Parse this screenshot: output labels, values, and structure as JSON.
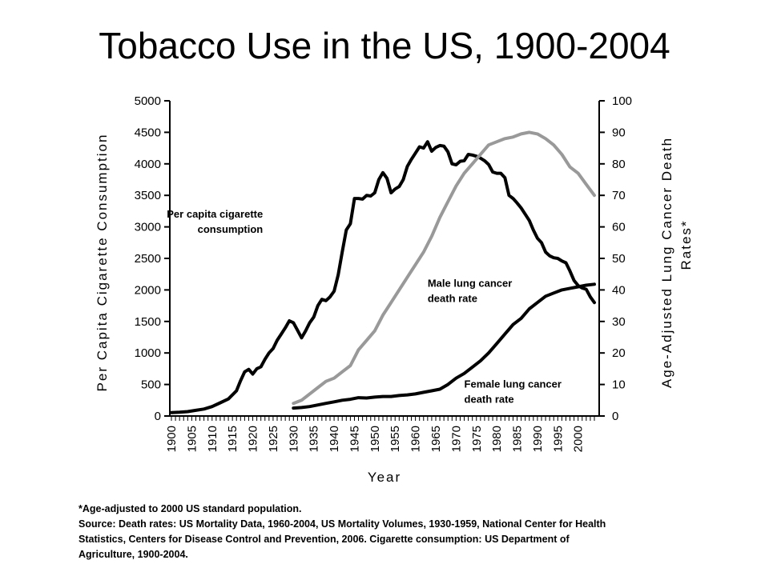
{
  "title": "Tobacco Use in the US, 1900-2004",
  "footnote": {
    "asterisk": "*Age-adjusted to 2000 US standard population.",
    "source_lines": [
      "Source: Death rates: US Mortality Data, 1960-2004, US Mortality Volumes, 1930-1959, National Center for Health",
      "Statistics, Centers for Disease Control and Prevention, 2006. Cigarette consumption: US Department of",
      "Agriculture, 1900-2004."
    ]
  },
  "chart_data": {
    "type": "line",
    "xlabel": "Year",
    "ylabel": "Per Capita Cigarette Consumption",
    "y2label_lines": [
      "Age-Adjusted Lung Cancer Death",
      "Rates*"
    ],
    "xlim": [
      1900,
      2004
    ],
    "ylim": [
      0,
      5000
    ],
    "y2lim": [
      0,
      100
    ],
    "x_ticks": [
      1900,
      1905,
      1910,
      1915,
      1920,
      1925,
      1930,
      1935,
      1940,
      1945,
      1950,
      1955,
      1960,
      1965,
      1970,
      1975,
      1980,
      1985,
      1990,
      1995,
      2000
    ],
    "y_ticks": [
      0,
      500,
      1000,
      1500,
      2000,
      2500,
      3000,
      3500,
      4000,
      4500,
      5000
    ],
    "y2_ticks": [
      0,
      10,
      20,
      30,
      40,
      50,
      60,
      70,
      80,
      90,
      100
    ],
    "grid": false,
    "legend": "none",
    "series": [
      {
        "axis": "left",
        "color": "#000000",
        "x": [
          1900,
          1902,
          1904,
          1906,
          1908,
          1910,
          1912,
          1914,
          1916,
          1917,
          1918,
          1919,
          1920,
          1921,
          1922,
          1923,
          1924,
          1925,
          1926,
          1927,
          1928,
          1929,
          1930,
          1931,
          1932,
          1933,
          1934,
          1935,
          1936,
          1937,
          1938,
          1939,
          1940,
          1941,
          1942,
          1943,
          1944,
          1945,
          1946,
          1947,
          1948,
          1949,
          1950,
          1951,
          1952,
          1953,
          1954,
          1955,
          1956,
          1957,
          1958,
          1959,
          1960,
          1961,
          1962,
          1963,
          1964,
          1965,
          1966,
          1967,
          1968,
          1969,
          1970,
          1971,
          1972,
          1973,
          1974,
          1975,
          1976,
          1977,
          1978,
          1979,
          1980,
          1981,
          1982,
          1983,
          1984,
          1985,
          1986,
          1987,
          1988,
          1989,
          1990,
          1991,
          1992,
          1993,
          1994,
          1995,
          1996,
          1997,
          1998,
          1999,
          2000,
          2001,
          2002,
          2003,
          2004
        ],
        "values": [
          54,
          60,
          70,
          90,
          110,
          150,
          210,
          270,
          400,
          560,
          700,
          740,
          665,
          750,
          780,
          900,
          1000,
          1070,
          1200,
          1300,
          1400,
          1510,
          1480,
          1360,
          1240,
          1350,
          1480,
          1570,
          1750,
          1850,
          1830,
          1890,
          1980,
          2240,
          2600,
          2950,
          3050,
          3450,
          3450,
          3440,
          3500,
          3490,
          3540,
          3750,
          3860,
          3770,
          3540,
          3600,
          3640,
          3750,
          3960,
          4070,
          4170,
          4270,
          4250,
          4350,
          4200,
          4260,
          4290,
          4280,
          4190,
          4000,
          3985,
          4040,
          4050,
          4150,
          4140,
          4120,
          4090,
          4050,
          3990,
          3870,
          3850,
          3850,
          3780,
          3500,
          3450,
          3380,
          3300,
          3200,
          3100,
          2950,
          2820,
          2750,
          2600,
          2540,
          2510,
          2500,
          2460,
          2430,
          2300,
          2150,
          2070,
          2030,
          2010,
          1890,
          1800
        ]
      },
      {
        "axis": "right",
        "color": "#999999",
        "x": [
          1930,
          1932,
          1934,
          1936,
          1938,
          1940,
          1942,
          1944,
          1946,
          1948,
          1950,
          1952,
          1954,
          1956,
          1958,
          1960,
          1962,
          1964,
          1966,
          1968,
          1970,
          1972,
          1974,
          1976,
          1978,
          1980,
          1982,
          1984,
          1986,
          1988,
          1990,
          1992,
          1994,
          1996,
          1998,
          2000,
          2002,
          2004
        ],
        "values": [
          4,
          5,
          7,
          9,
          11,
          12,
          14,
          16,
          21,
          24,
          27,
          32,
          36,
          40,
          44,
          48,
          52,
          57,
          63,
          68,
          73,
          77,
          80,
          83,
          86,
          87,
          88,
          88.5,
          89.5,
          90,
          89.5,
          88,
          86,
          83,
          79,
          77,
          73.5,
          70
        ]
      },
      {
        "axis": "right",
        "color": "#000000",
        "x": [
          1930,
          1932,
          1934,
          1936,
          1938,
          1940,
          1942,
          1944,
          1946,
          1948,
          1950,
          1952,
          1954,
          1956,
          1958,
          1960,
          1962,
          1964,
          1966,
          1968,
          1970,
          1972,
          1974,
          1976,
          1978,
          1980,
          1982,
          1984,
          1986,
          1988,
          1990,
          1992,
          1994,
          1996,
          1998,
          2000,
          2002,
          2004
        ],
        "values": [
          2.5,
          2.7,
          3,
          3.5,
          4,
          4.5,
          5,
          5.3,
          5.8,
          5.7,
          6,
          6.2,
          6.2,
          6.5,
          6.7,
          7,
          7.5,
          8,
          8.5,
          10,
          12,
          13.5,
          15.5,
          17.5,
          20,
          23,
          26,
          29,
          31,
          34,
          36,
          38,
          39,
          40,
          40.5,
          41,
          41.5,
          41.8
        ]
      }
    ],
    "annotations": [
      {
        "lines": [
          "Per capita cigarette",
          "consumption"
        ],
        "align": "end",
        "x": 1922.5,
        "y2": 63
      },
      {
        "lines": [
          "Male lung cancer",
          "death rate"
        ],
        "align": "start",
        "x": 1963,
        "y2": 41
      },
      {
        "lines": [
          "Female lung cancer",
          "death rate"
        ],
        "align": "start",
        "x": 1972,
        "y2": 9
      }
    ]
  }
}
